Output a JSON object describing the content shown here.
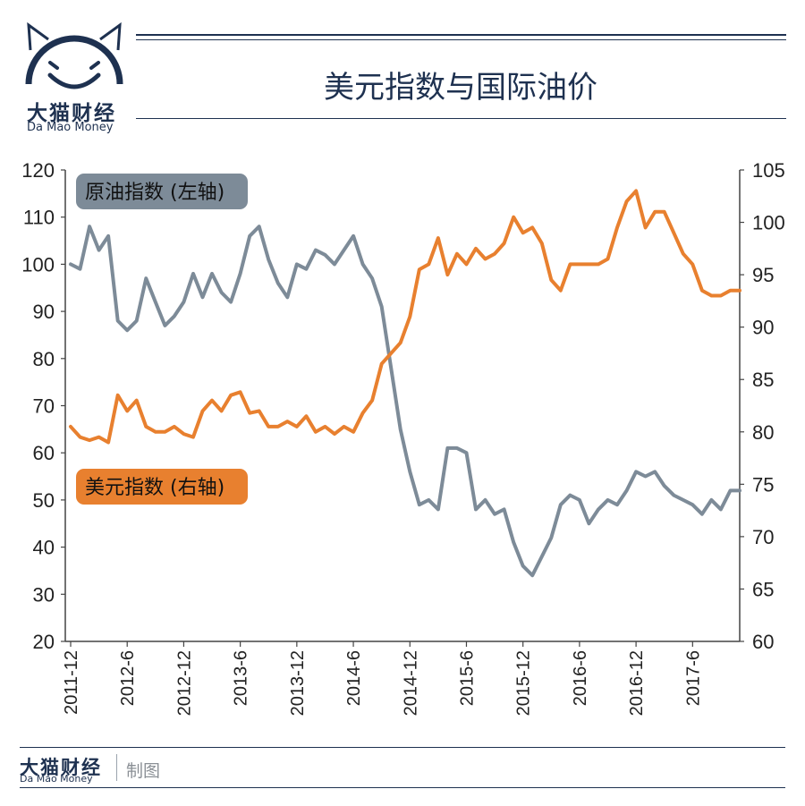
{
  "brand": {
    "name_cn": "大猫财经",
    "name_en": "Da Mao Money",
    "made_by": "制图"
  },
  "colors": {
    "oil": "#7d8b98",
    "usd": "#e8802f",
    "navy": "#1e3150",
    "axis": "#444444"
  },
  "chart_data": {
    "type": "line",
    "title": "美元指数与国际油价",
    "x_tick_labels": [
      "2011-12",
      "2012-6",
      "2012-12",
      "2013-6",
      "2013-12",
      "2014-6",
      "2014-12",
      "2015-6",
      "2015-12",
      "2016-6",
      "2016-12",
      "2017-6"
    ],
    "left_axis": {
      "ylim": [
        20,
        120
      ],
      "ticks": [
        20,
        30,
        40,
        50,
        60,
        70,
        80,
        90,
        100,
        110,
        120
      ]
    },
    "right_axis": {
      "ylim": [
        60,
        105
      ],
      "ticks": [
        60,
        65,
        70,
        75,
        80,
        85,
        90,
        95,
        100,
        105
      ]
    },
    "grid": false,
    "series": [
      {
        "name": "原油指数 (左轴)",
        "axis": "left",
        "legend_placement": "top-left",
        "x": [
          0,
          1,
          2,
          3,
          4,
          5,
          6,
          7,
          8,
          9,
          10,
          11,
          12,
          13,
          14,
          15,
          16,
          17,
          18,
          19,
          20,
          21,
          22,
          23,
          24,
          25,
          26,
          27,
          28,
          29,
          30,
          31,
          32,
          33,
          34,
          35,
          36,
          37,
          38,
          39,
          40,
          41,
          42,
          43,
          44,
          45,
          46,
          47,
          48,
          49,
          50,
          51,
          52,
          53,
          54,
          55,
          56,
          57,
          58,
          59,
          60,
          61,
          62,
          63,
          64,
          65,
          66,
          67,
          68,
          69,
          70,
          71
        ],
        "values": [
          100,
          99,
          108,
          103,
          106,
          88,
          86,
          88,
          97,
          92,
          87,
          89,
          92,
          98,
          93,
          98,
          94,
          92,
          98,
          106,
          108,
          101,
          96,
          93,
          100,
          99,
          103,
          102,
          100,
          103,
          106,
          100,
          97,
          91,
          78,
          65,
          56,
          49,
          50,
          48,
          61,
          61,
          60,
          48,
          50,
          47,
          48,
          41,
          36,
          34,
          38,
          42,
          49,
          51,
          50,
          45,
          48,
          50,
          49,
          52,
          56,
          55,
          56,
          53,
          51,
          50,
          49,
          47,
          50,
          48,
          52,
          52
        ],
        "values_approx_note": ""
      },
      {
        "name": "美元指数 (右轴)",
        "axis": "right",
        "legend_placement": "middle-left",
        "x": [
          0,
          1,
          2,
          3,
          4,
          5,
          6,
          7,
          8,
          9,
          10,
          11,
          12,
          13,
          14,
          15,
          16,
          17,
          18,
          19,
          20,
          21,
          22,
          23,
          24,
          25,
          26,
          27,
          28,
          29,
          30,
          31,
          32,
          33,
          34,
          35,
          36,
          37,
          38,
          39,
          40,
          41,
          42,
          43,
          44,
          45,
          46,
          47,
          48,
          49,
          50,
          51,
          52,
          53,
          54,
          55,
          56,
          57,
          58,
          59,
          60,
          61,
          62,
          63,
          64,
          65,
          66,
          67,
          68,
          69,
          70,
          71
        ],
        "values": [
          80.5,
          79.5,
          79.2,
          79.5,
          79.0,
          83.5,
          82.0,
          83.0,
          80.5,
          80.0,
          80.0,
          80.5,
          79.8,
          79.5,
          82.0,
          83.0,
          82.0,
          83.5,
          83.8,
          81.8,
          82.0,
          80.5,
          80.5,
          81.0,
          80.5,
          81.5,
          80.0,
          80.5,
          79.8,
          80.5,
          80.0,
          81.8,
          83.0,
          86.5,
          87.5,
          88.5,
          91.0,
          95.5,
          96.0,
          98.5,
          95.0,
          97.0,
          96.0,
          97.5,
          96.5,
          97.0,
          98.0,
          100.5,
          99.0,
          99.5,
          98.0,
          94.5,
          93.5,
          96.0,
          96.0,
          96.0,
          96.0,
          96.5,
          99.5,
          102.0,
          103.0,
          99.5,
          101.0,
          101.0,
          99.0,
          97.0,
          96.0,
          93.5,
          93.0,
          93.0,
          93.5,
          93.5
        ]
      }
    ]
  }
}
